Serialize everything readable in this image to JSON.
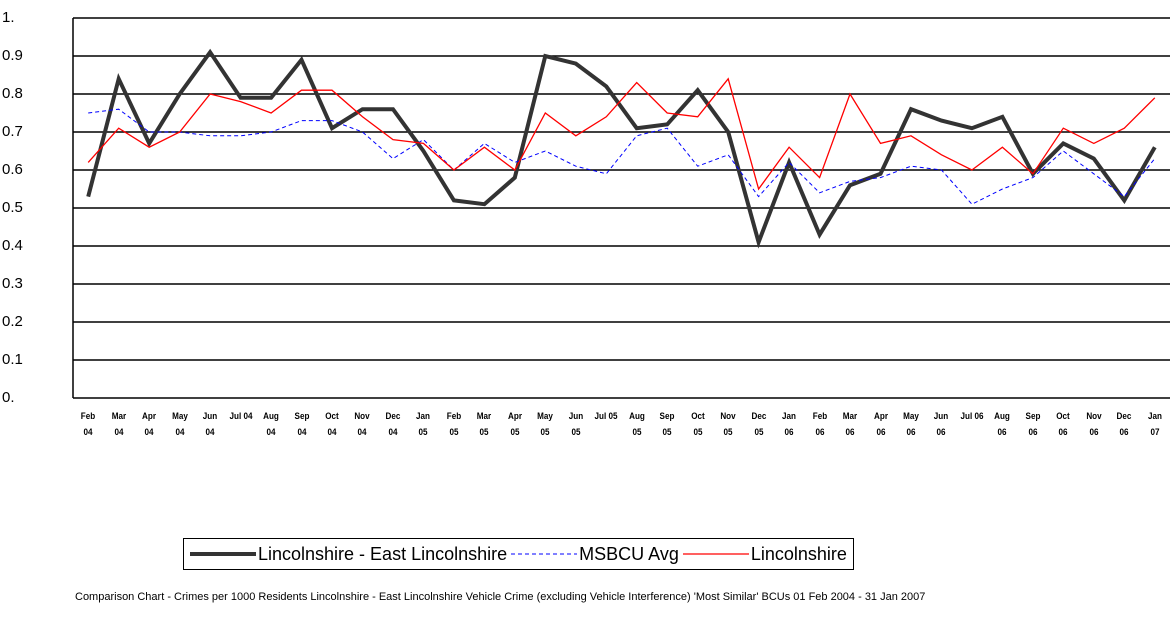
{
  "chart_data": {
    "type": "line",
    "categories": [
      "Feb 04",
      "Mar 04",
      "Apr 04",
      "May 04",
      "Jun 04",
      "Jul 04",
      "Aug 04",
      "Sep 04",
      "Oct 04",
      "Nov 04",
      "Dec 04",
      "Jan 05",
      "Feb 05",
      "Mar 05",
      "Apr 05",
      "May 05",
      "Jun 05",
      "Jul 05",
      "Aug 05",
      "Sep 05",
      "Oct 05",
      "Nov 05",
      "Dec 05",
      "Jan 06",
      "Feb 06",
      "Mar 06",
      "Apr 06",
      "May 06",
      "Jun 06",
      "Jul 06",
      "Aug 06",
      "Sep 06",
      "Oct 06",
      "Nov 06",
      "Dec 06",
      "Jan 07"
    ],
    "series": [
      {
        "name": "Lincolnshire - East Lincolnshire",
        "color": "#333333",
        "linewidth": 4,
        "linestyle": "solid",
        "values": [
          0.53,
          0.84,
          0.67,
          0.8,
          0.91,
          0.79,
          0.79,
          0.89,
          0.71,
          0.76,
          0.76,
          0.65,
          0.52,
          0.51,
          0.58,
          0.9,
          0.88,
          0.82,
          0.71,
          0.72,
          0.81,
          0.7,
          0.41,
          0.62,
          0.43,
          0.56,
          0.59,
          0.76,
          0.73,
          0.71,
          0.74,
          0.59,
          0.67,
          0.63,
          0.52,
          0.66
        ]
      },
      {
        "name": "MSBCU Avg",
        "color": "#0000ff",
        "linewidth": 1,
        "linestyle": "dashed",
        "values": [
          0.75,
          0.76,
          0.7,
          0.7,
          0.69,
          0.69,
          0.7,
          0.73,
          0.73,
          0.7,
          0.63,
          0.68,
          0.6,
          0.67,
          0.62,
          0.65,
          0.61,
          0.59,
          0.69,
          0.71,
          0.61,
          0.64,
          0.53,
          0.62,
          0.54,
          0.57,
          0.58,
          0.61,
          0.6,
          0.51,
          0.55,
          0.58,
          0.65,
          0.59,
          0.53,
          0.63
        ]
      },
      {
        "name": "Lincolnshire",
        "color": "#ff0000",
        "linewidth": 1.3,
        "linestyle": "solid",
        "values": [
          0.62,
          0.71,
          0.66,
          0.7,
          0.8,
          0.78,
          0.75,
          0.81,
          0.81,
          0.74,
          0.68,
          0.67,
          0.6,
          0.66,
          0.6,
          0.75,
          0.69,
          0.74,
          0.83,
          0.75,
          0.74,
          0.84,
          0.55,
          0.66,
          0.58,
          0.8,
          0.67,
          0.69,
          0.64,
          0.6,
          0.66,
          0.59,
          0.71,
          0.67,
          0.71,
          0.79
        ]
      }
    ],
    "ylim": [
      0,
      1
    ],
    "yticks": [
      {
        "value": 0,
        "label": "0."
      },
      0.1,
      0.2,
      0.3,
      0.4,
      0.5,
      0.6,
      0.7,
      0.8,
      0.9,
      {
        "value": 1,
        "label": "1."
      }
    ],
    "grid": true,
    "note": "Comparison Chart  - Crimes per 1000 Residents Lincolnshire - East Lincolnshire Vehicle Crime (excluding Vehicle Interference) 'Most Similar' BCUs 01 Feb 2004 - 31 Jan 2007"
  }
}
